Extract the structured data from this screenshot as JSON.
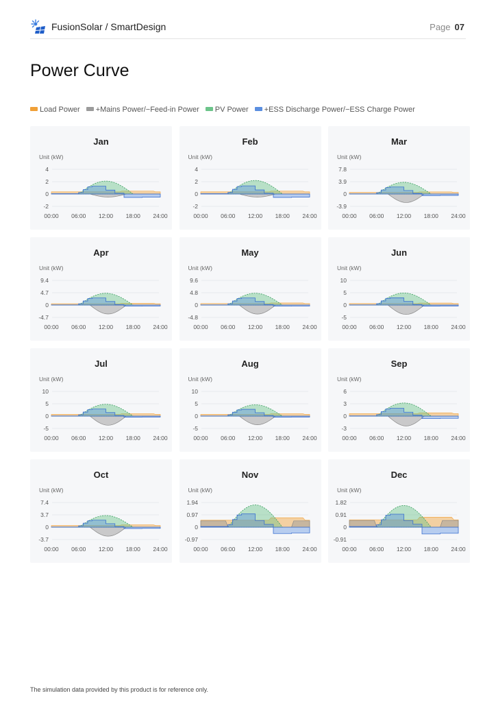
{
  "header": {
    "brand": "FusionSolar / SmartDesign",
    "page_label": "Page",
    "page_number": "07",
    "logo_icon": "fusionsolar-sun-panel-icon"
  },
  "title": "Power Curve",
  "legend": [
    {
      "label": "Load Power",
      "color": "#f0a038"
    },
    {
      "label": "+Mains Power/−Feed-in Power",
      "color": "#9b9b9b"
    },
    {
      "label": "PV Power",
      "color": "#6cc48a"
    },
    {
      "label": "+ESS Discharge Power/−ESS Charge Power",
      "color": "#5b8fe0"
    }
  ],
  "colors": {
    "load": "#f0a038",
    "mains": "#9b9b9b",
    "pv": "#6cc48a",
    "ess": "#5b8fe0",
    "card_bg": "#f6f7f9"
  },
  "chart_data": [
    {
      "type": "area",
      "title": "Jan",
      "ylabel": "Unit (kW)",
      "yticks": [
        "4",
        "2",
        "0",
        "-2"
      ],
      "ylim": [
        -2,
        4
      ],
      "xticks": [
        "00:00",
        "06:00",
        "12:00",
        "18:00",
        "24:00"
      ],
      "pv_peak": 2.1,
      "load": 0.35,
      "mains_min": -0.5,
      "ess_charge": -0.55
    },
    {
      "type": "area",
      "title": "Feb",
      "ylabel": "Unit (kW)",
      "yticks": [
        "4",
        "2",
        "0",
        "-2"
      ],
      "ylim": [
        -2,
        4
      ],
      "xticks": [
        "00:00",
        "06:00",
        "12:00",
        "18:00",
        "24:00"
      ],
      "pv_peak": 2.2,
      "load": 0.35,
      "mains_min": -0.5,
      "ess_charge": -0.55
    },
    {
      "type": "area",
      "title": "Mar",
      "ylabel": "Unit (kW)",
      "yticks": [
        "7.8",
        "3.9",
        "0",
        "-3.9"
      ],
      "ylim": [
        -3.9,
        7.8
      ],
      "xticks": [
        "00:00",
        "06:00",
        "12:00",
        "18:00",
        "24:00"
      ],
      "pv_peak": 3.7,
      "load": 0.5,
      "mains_min": -2.7,
      "ess_charge": -0.5
    },
    {
      "type": "area",
      "title": "Apr",
      "ylabel": "Unit (kW)",
      "yticks": [
        "9.4",
        "4.7",
        "0",
        "-4.7"
      ],
      "ylim": [
        -4.7,
        9.4
      ],
      "xticks": [
        "00:00",
        "06:00",
        "12:00",
        "18:00",
        "24:00"
      ],
      "pv_peak": 4.5,
      "load": 0.5,
      "mains_min": -3.4,
      "ess_charge": -0.4
    },
    {
      "type": "area",
      "title": "May",
      "ylabel": "Unit (kW)",
      "yticks": [
        "9.6",
        "4.8",
        "0",
        "-4.8"
      ],
      "ylim": [
        -4.8,
        9.6
      ],
      "xticks": [
        "00:00",
        "06:00",
        "12:00",
        "18:00",
        "24:00"
      ],
      "pv_peak": 4.6,
      "load": 0.6,
      "mains_min": -3.5,
      "ess_charge": -0.4
    },
    {
      "type": "area",
      "title": "Jun",
      "ylabel": "Unit (kW)",
      "yticks": [
        "10",
        "5",
        "0",
        "-5"
      ],
      "ylim": [
        -5,
        10
      ],
      "xticks": [
        "00:00",
        "06:00",
        "12:00",
        "18:00",
        "24:00"
      ],
      "pv_peak": 4.9,
      "load": 0.6,
      "mains_min": -3.8,
      "ess_charge": -0.4
    },
    {
      "type": "area",
      "title": "Jul",
      "ylabel": "Unit (kW)",
      "yticks": [
        "10",
        "5",
        "0",
        "-5"
      ],
      "ylim": [
        -5,
        10
      ],
      "xticks": [
        "00:00",
        "06:00",
        "12:00",
        "18:00",
        "24:00"
      ],
      "pv_peak": 4.8,
      "load": 0.7,
      "mains_min": -3.7,
      "ess_charge": -0.4
    },
    {
      "type": "area",
      "title": "Aug",
      "ylabel": "Unit (kW)",
      "yticks": [
        "10",
        "5",
        "0",
        "-5"
      ],
      "ylim": [
        -5,
        10
      ],
      "xticks": [
        "00:00",
        "06:00",
        "12:00",
        "18:00",
        "24:00"
      ],
      "pv_peak": 4.6,
      "load": 0.7,
      "mains_min": -3.5,
      "ess_charge": -0.4
    },
    {
      "type": "area",
      "title": "Sep",
      "ylabel": "Unit (kW)",
      "yticks": [
        "6",
        "3",
        "0",
        "-3"
      ],
      "ylim": [
        -3,
        6
      ],
      "xticks": [
        "00:00",
        "06:00",
        "12:00",
        "18:00",
        "24:00"
      ],
      "pv_peak": 3.2,
      "load": 0.6,
      "mains_min": -2.4,
      "ess_charge": -0.6
    },
    {
      "type": "area",
      "title": "Oct",
      "ylabel": "Unit (kW)",
      "yticks": [
        "7.4",
        "3.7",
        "0",
        "-3.7"
      ],
      "ylim": [
        -3.7,
        7.4
      ],
      "xticks": [
        "00:00",
        "06:00",
        "12:00",
        "18:00",
        "24:00"
      ],
      "pv_peak": 3.5,
      "load": 0.5,
      "mains_min": -2.7,
      "ess_charge": -0.4
    },
    {
      "type": "area",
      "title": "Nov",
      "ylabel": "Unit (kW)",
      "yticks": [
        "1.94",
        "0.97",
        "0",
        "-0.97"
      ],
      "ylim": [
        -0.97,
        1.94
      ],
      "xticks": [
        "00:00",
        "06:00",
        "12:00",
        "18:00",
        "24:00"
      ],
      "pv_peak": 1.75,
      "load": 0.55,
      "mains_min": -0.05,
      "ess_charge": -0.5
    },
    {
      "type": "area",
      "title": "Dec",
      "ylabel": "Unit (kW)",
      "yticks": [
        "1.82",
        "0.91",
        "0",
        "-0.91"
      ],
      "ylim": [
        -0.91,
        1.82
      ],
      "xticks": [
        "00:00",
        "06:00",
        "12:00",
        "18:00",
        "24:00"
      ],
      "pv_peak": 1.6,
      "load": 0.55,
      "mains_min": -0.05,
      "ess_charge": -0.5
    }
  ],
  "footer": "The simulation data provided by this product is for reference only."
}
